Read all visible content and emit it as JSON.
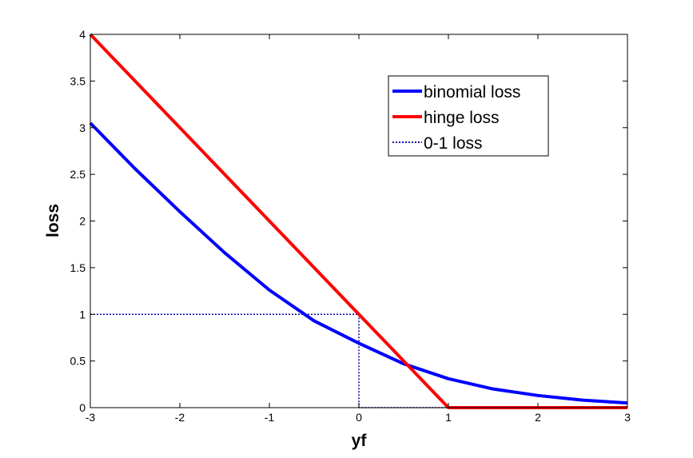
{
  "chart_data": {
    "type": "line",
    "title": "",
    "xlabel": "yf",
    "ylabel": "loss",
    "xlim": [
      -3,
      3
    ],
    "ylim": [
      0,
      4
    ],
    "xticks": [
      -3,
      -2,
      -1,
      0,
      1,
      2,
      3
    ],
    "xtick_labels": [
      "-3",
      "-2",
      "-1",
      "0",
      "1",
      "2",
      "3"
    ],
    "yticks": [
      0,
      0.5,
      1,
      1.5,
      2,
      2.5,
      3,
      3.5,
      4
    ],
    "ytick_labels": [
      "0",
      "0.5",
      "1",
      "1.5",
      "2",
      "2.5",
      "3",
      "3.5",
      "4"
    ],
    "grid": false,
    "legend_position": "top-right",
    "series": [
      {
        "name": "binomial loss",
        "color": "#0000ff",
        "style": "solid",
        "x": [
          -3,
          -2.5,
          -2,
          -1.5,
          -1,
          -0.5,
          0,
          0.5,
          1,
          1.5,
          2,
          2.5,
          3
        ],
        "y": [
          3.05,
          2.56,
          2.1,
          1.66,
          1.26,
          0.93,
          0.69,
          0.47,
          0.31,
          0.2,
          0.13,
          0.08,
          0.05
        ]
      },
      {
        "name": "hinge loss",
        "color": "#ff0000",
        "style": "solid",
        "x": [
          -3,
          1,
          3
        ],
        "y": [
          4,
          0,
          0
        ]
      },
      {
        "name": "0-1 loss",
        "color": "#0000aa",
        "style": "dotted",
        "x": [
          -3,
          0,
          0,
          3
        ],
        "y": [
          1,
          1,
          0,
          0
        ]
      }
    ]
  }
}
